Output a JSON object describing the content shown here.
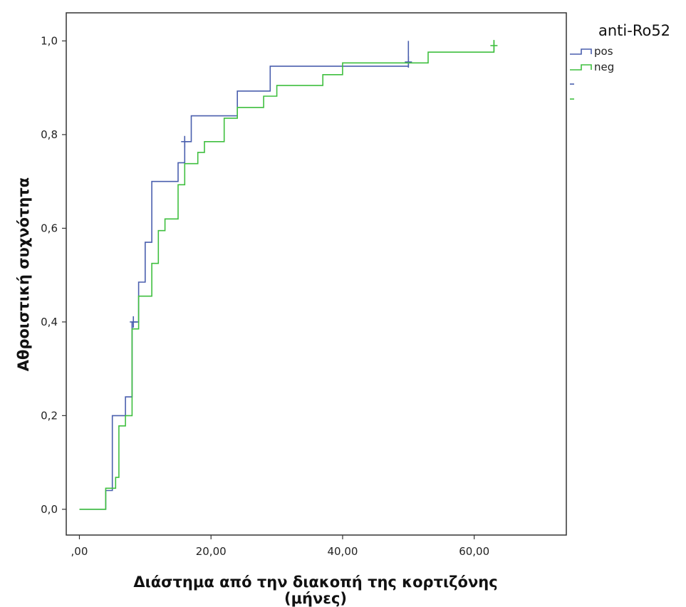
{
  "chart_data": {
    "type": "line",
    "step": true,
    "xlabel_line1": "Διάστημα από την διακοπή της κορτιζόνης",
    "xlabel_line2": "(μήνες)",
    "ylabel": "Αθροιστική συχνότητα",
    "xlim": [
      -2,
      74
    ],
    "ylim": [
      -0.055,
      1.06
    ],
    "x_ticks": [
      0,
      20,
      40,
      60
    ],
    "x_tick_labels": [
      ",00",
      "20,00",
      "40,00",
      "60,00"
    ],
    "y_ticks": [
      0,
      0.2,
      0.4,
      0.6,
      0.8,
      1.0
    ],
    "y_tick_labels": [
      "0,0",
      "0,2",
      "0,4",
      "0,6",
      "0,8",
      "1,0"
    ],
    "grid": false,
    "legend": {
      "title": "anti-Ro52",
      "position": "top-right",
      "entries": [
        "pos",
        "neg"
      ]
    },
    "series": [
      {
        "name": "pos",
        "color": "#4a5fae",
        "points": [
          [
            0,
            0
          ],
          [
            4,
            0
          ],
          [
            4,
            0.04
          ],
          [
            5,
            0.04
          ],
          [
            5,
            0.2
          ],
          [
            7,
            0.2
          ],
          [
            7,
            0.24
          ],
          [
            8,
            0.24
          ],
          [
            8,
            0.4
          ],
          [
            9,
            0.4
          ],
          [
            9,
            0.485
          ],
          [
            10,
            0.485
          ],
          [
            10,
            0.57
          ],
          [
            11,
            0.57
          ],
          [
            11,
            0.7
          ],
          [
            15,
            0.7
          ],
          [
            15,
            0.74
          ],
          [
            16,
            0.74
          ],
          [
            16,
            0.785
          ],
          [
            17,
            0.785
          ],
          [
            17,
            0.84
          ],
          [
            24,
            0.84
          ],
          [
            24,
            0.893
          ],
          [
            29,
            0.893
          ],
          [
            29,
            0.946
          ],
          [
            50,
            0.946
          ],
          [
            50,
            1.0
          ]
        ],
        "censored": [
          [
            8.2,
            0.4
          ],
          [
            16.0,
            0.785
          ],
          [
            50,
            0.955
          ]
        ]
      },
      {
        "name": "neg",
        "color": "#3fbf3f",
        "points": [
          [
            0,
            0
          ],
          [
            4,
            0
          ],
          [
            4,
            0.045
          ],
          [
            5.5,
            0.045
          ],
          [
            5.5,
            0.068
          ],
          [
            6,
            0.068
          ],
          [
            6,
            0.178
          ],
          [
            7,
            0.178
          ],
          [
            7,
            0.2
          ],
          [
            8,
            0.2
          ],
          [
            8,
            0.385
          ],
          [
            9,
            0.385
          ],
          [
            9,
            0.455
          ],
          [
            11,
            0.455
          ],
          [
            11,
            0.525
          ],
          [
            12,
            0.525
          ],
          [
            12,
            0.595
          ],
          [
            13,
            0.595
          ],
          [
            13,
            0.62
          ],
          [
            15,
            0.62
          ],
          [
            15,
            0.693
          ],
          [
            16,
            0.693
          ],
          [
            16,
            0.738
          ],
          [
            18,
            0.738
          ],
          [
            18,
            0.762
          ],
          [
            19,
            0.762
          ],
          [
            19,
            0.785
          ],
          [
            22,
            0.785
          ],
          [
            22,
            0.835
          ],
          [
            24,
            0.835
          ],
          [
            24,
            0.858
          ],
          [
            28,
            0.858
          ],
          [
            28,
            0.882
          ],
          [
            30,
            0.882
          ],
          [
            30,
            0.905
          ],
          [
            37,
            0.905
          ],
          [
            37,
            0.928
          ],
          [
            40,
            0.928
          ],
          [
            40,
            0.953
          ],
          [
            53,
            0.953
          ],
          [
            53,
            0.976
          ],
          [
            63,
            0.976
          ],
          [
            63,
            1.0
          ]
        ],
        "censored": [
          [
            63,
            0.99
          ]
        ]
      }
    ]
  }
}
